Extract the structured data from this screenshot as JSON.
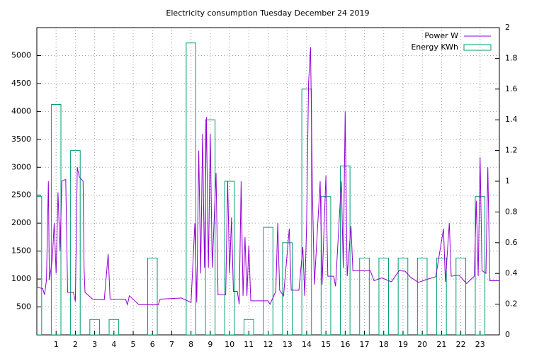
{
  "chart_data": {
    "type": "line",
    "title": "Electricity consumption Tuesday December 24 2019",
    "xlim": [
      0,
      24
    ],
    "xticks": [
      1,
      2,
      3,
      4,
      5,
      6,
      7,
      8,
      9,
      10,
      11,
      12,
      13,
      14,
      15,
      16,
      17,
      18,
      19,
      20,
      21,
      22,
      23
    ],
    "ylim": [
      0,
      5500
    ],
    "yticks": [
      500,
      1000,
      1500,
      2000,
      2500,
      3000,
      3500,
      4000,
      4500,
      5000
    ],
    "y2lim": [
      0,
      2
    ],
    "y2ticks": [
      0,
      0.2,
      0.4,
      0.6,
      0.8,
      1,
      1.2,
      1.4,
      1.6,
      1.8,
      2
    ],
    "grid": true,
    "legend": "top-right",
    "series": [
      {
        "name": "Power W",
        "color": "#9400d3",
        "style": "line",
        "x": [
          0,
          0.02,
          0.3,
          0.4,
          0.5,
          0.6,
          0.65,
          0.8,
          0.9,
          1.0,
          1.1,
          1.2,
          1.3,
          1.5,
          1.6,
          1.9,
          2.0,
          2.1,
          2.2,
          2.4,
          2.45,
          2.5,
          2.9,
          3.5,
          3.7,
          3.8,
          4.6,
          4.7,
          4.8,
          5.3,
          6.3,
          6.4,
          7.5,
          8.0,
          8.2,
          8.3,
          8.4,
          8.5,
          8.6,
          8.7,
          8.8,
          8.9,
          9.0,
          9.1,
          9.3,
          9.4,
          9.8,
          9.9,
          10.0,
          10.1,
          10.2,
          10.4,
          10.5,
          10.6,
          10.7,
          10.8,
          10.9,
          11.0,
          11.1,
          12.0,
          12.1,
          12.4,
          12.5,
          12.6,
          12.8,
          13.1,
          13.2,
          13.6,
          13.8,
          13.9,
          14.0,
          14.1,
          14.2,
          14.3,
          14.4,
          14.7,
          14.8,
          15.0,
          15.1,
          15.4,
          15.5,
          15.8,
          15.9,
          16.0,
          16.1,
          16.3,
          16.4,
          17.3,
          17.5,
          17.9,
          18.4,
          18.8,
          19.1,
          19.4,
          19.8,
          20.3,
          20.7,
          21.1,
          21.2,
          21.4,
          21.5,
          21.9,
          22.3,
          22.7,
          22.8,
          22.9,
          23.0,
          23.1,
          23.3,
          23.4,
          23.5,
          24.0
        ],
        "values": [
          2600,
          850,
          830,
          720,
          980,
          2750,
          980,
          1350,
          2000,
          1100,
          2550,
          1500,
          2760,
          2780,
          760,
          760,
          600,
          3000,
          2830,
          2750,
          1200,
          760,
          640,
          630,
          1450,
          640,
          640,
          540,
          700,
          540,
          540,
          640,
          660,
          580,
          2000,
          580,
          3300,
          1100,
          3600,
          1200,
          3900,
          1200,
          3600,
          1200,
          2900,
          720,
          720,
          2750,
          1100,
          2100,
          780,
          780,
          550,
          2750,
          700,
          1750,
          700,
          1600,
          610,
          610,
          550,
          780,
          2000,
          800,
          700,
          1900,
          800,
          800,
          1570,
          700,
          2000,
          4500,
          5150,
          2570,
          900,
          2750,
          900,
          2850,
          1050,
          1050,
          870,
          2750,
          1200,
          4000,
          1050,
          1950,
          1150,
          1150,
          970,
          1020,
          950,
          1150,
          1140,
          1030,
          940,
          1000,
          1040,
          1900,
          950,
          2000,
          1050,
          1070,
          920,
          1050,
          2400,
          1050,
          3180,
          1150,
          1100,
          3000,
          970,
          970
        ]
      },
      {
        "name": "Energy KWh",
        "color": "#009e73",
        "style": "boxes",
        "axis": "y2",
        "x": [
          0,
          1,
          2,
          3,
          4,
          6,
          8,
          9,
          10,
          11,
          12,
          13,
          14,
          15,
          16,
          17,
          18,
          19,
          20,
          21,
          22,
          23
        ],
        "values": [
          0.9,
          1.5,
          1.2,
          0.1,
          0.1,
          0.5,
          1.9,
          1.4,
          1.0,
          0.1,
          0.7,
          0.6,
          1.6,
          0.9,
          1.1,
          0.5,
          0.5,
          0.5,
          0.5,
          0.5,
          0.5,
          0.9
        ]
      }
    ]
  }
}
